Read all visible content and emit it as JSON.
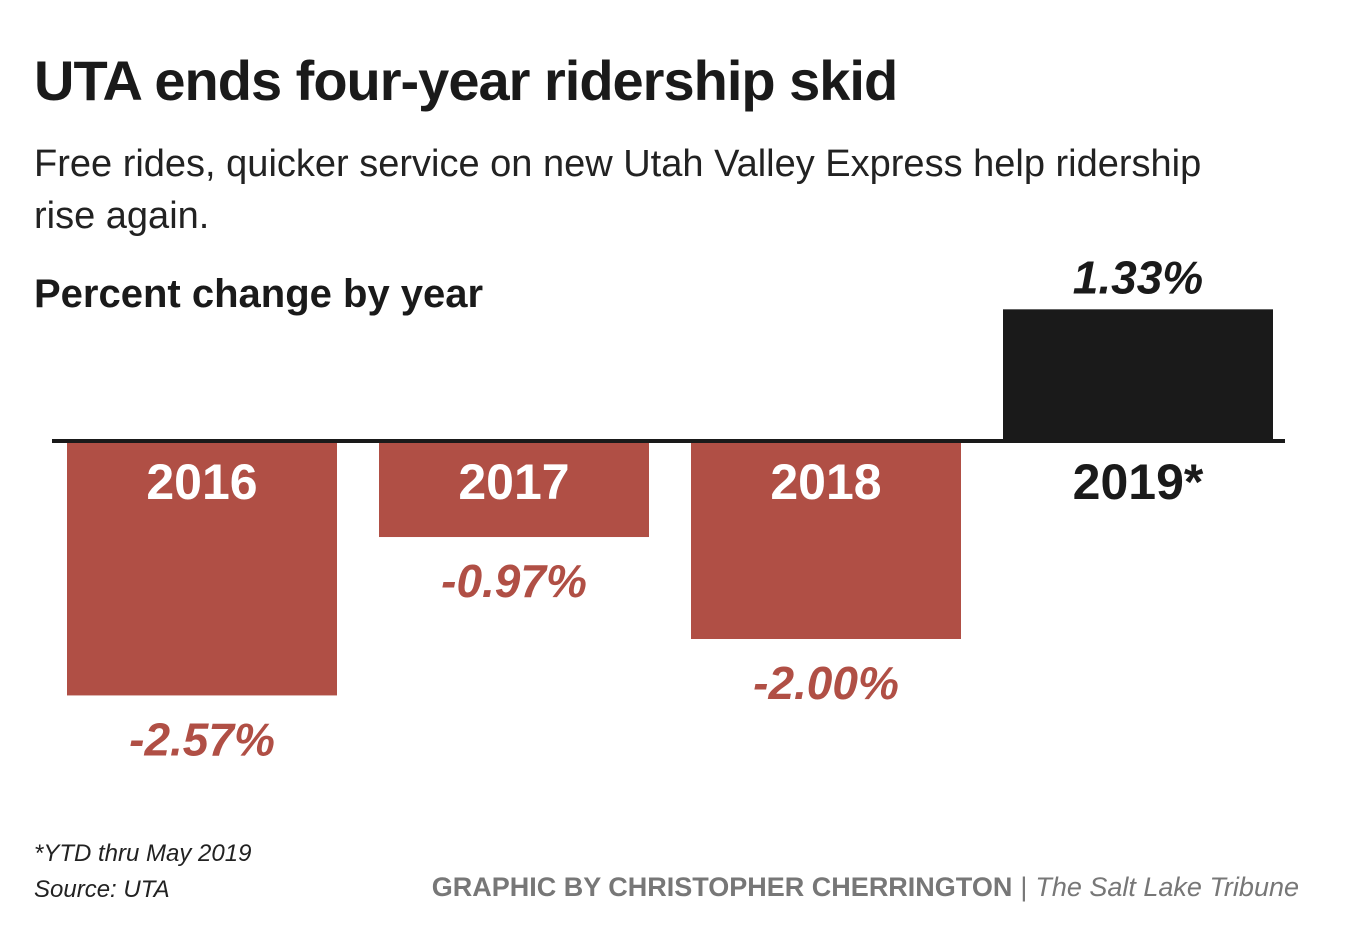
{
  "header": {
    "title": "UTA ends four-year ridership skid",
    "subtitle": "Free rides, quicker service on new Utah Valley Express help ridership rise again.",
    "measure_label": "Percent change by year"
  },
  "chart_data": {
    "type": "bar",
    "title": "UTA ends four-year ridership skid",
    "subtitle": "Free rides, quicker service on new Utah Valley Express help ridership rise again.",
    "ylabel": "Percent change by year",
    "xlabel": "",
    "categories": [
      "2016",
      "2017",
      "2018",
      "2019*"
    ],
    "values": [
      -2.57,
      -0.97,
      -2.0,
      1.33
    ],
    "value_labels": [
      "-2.57%",
      "-0.97%",
      "-2.00%",
      "1.33%"
    ],
    "ylim": [
      -2.57,
      1.33
    ],
    "grid": false,
    "colors": {
      "negative": "#b04f45",
      "positive": "#1a1a1a",
      "axis": "#1a1a1a",
      "year_on_negative": "#ffffff",
      "year_on_positive": "#1a1a1a"
    }
  },
  "footer": {
    "note": "*YTD thru May 2019",
    "source": "Source: UTA",
    "credit_by": "GRAPHIC BY CHRISTOPHER CHERRINGTON",
    "credit_separator": "|",
    "credit_publication": "The Salt Lake Tribune"
  }
}
